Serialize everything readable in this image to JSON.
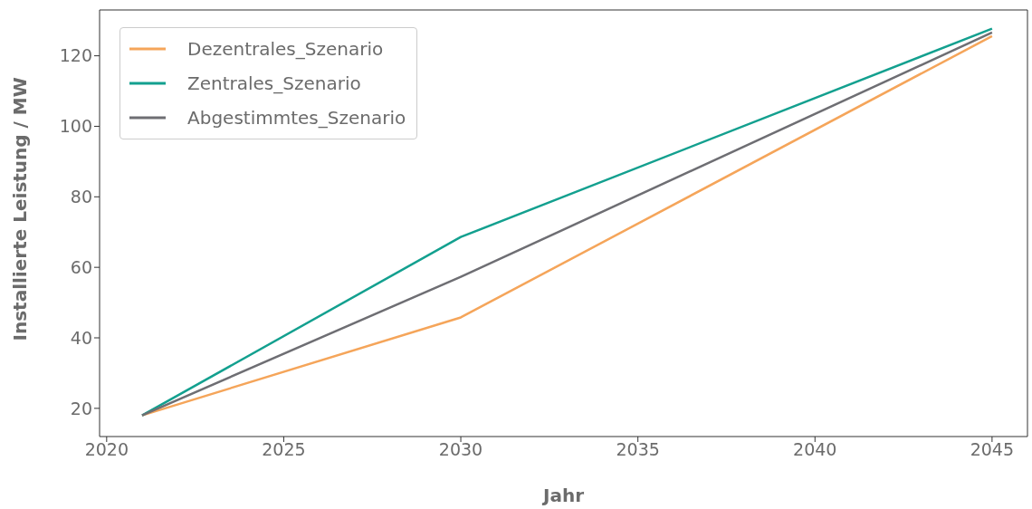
{
  "chart_data": {
    "type": "line",
    "xlabel": "Jahr",
    "ylabel": "Installierte Leistung / MW",
    "x": [
      2021,
      2030,
      2045
    ],
    "xlim": [
      2019.8,
      2046
    ],
    "xticks": [
      2020,
      2025,
      2030,
      2035,
      2040,
      2045
    ],
    "ylim": [
      12,
      133
    ],
    "yticks": [
      20,
      40,
      60,
      80,
      100,
      120
    ],
    "grid": false,
    "legend": "top left",
    "marker": "none",
    "line_style": "solid",
    "series": [
      {
        "name": "Dezentrales_Szenario",
        "color": "#f5a55a",
        "values": [
          18,
          45.8,
          125.6
        ]
      },
      {
        "name": "Zentrales_Szenario",
        "color": "#13a08f",
        "values": [
          18,
          68.6,
          127.7
        ]
      },
      {
        "name": "Abgestimmtes_Szenario",
        "color": "#6e6e73",
        "values": [
          18,
          57.3,
          126.6
        ]
      }
    ]
  }
}
